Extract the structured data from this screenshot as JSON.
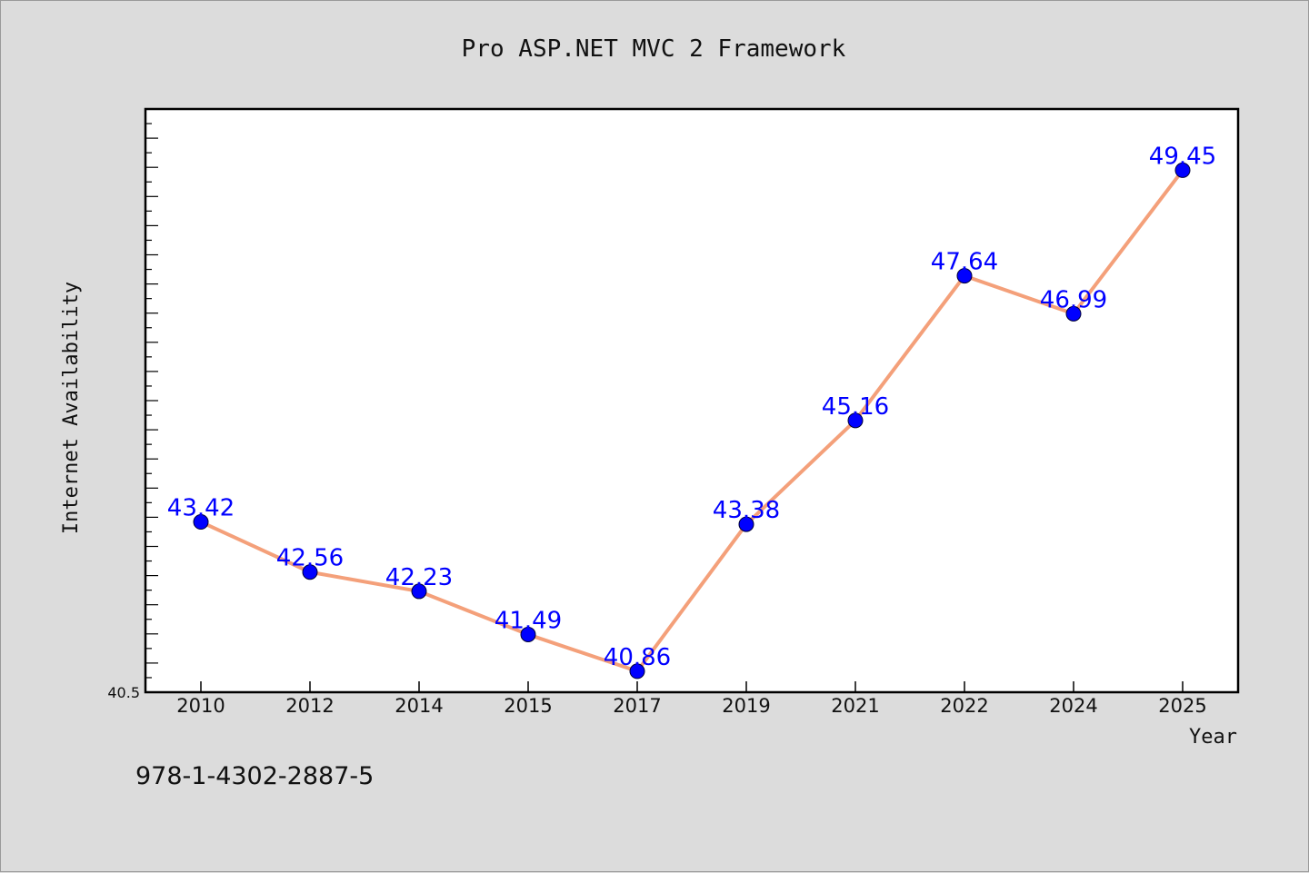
{
  "chart_data": {
    "type": "line",
    "title": "Pro ASP.NET MVC 2 Framework",
    "xlabel": "Year",
    "ylabel": "Internet Availability",
    "categories": [
      "2010",
      "2012",
      "2014",
      "2015",
      "2017",
      "2019",
      "2021",
      "2022",
      "2024",
      "2025"
    ],
    "series": [
      {
        "values": [
          43.42,
          42.56,
          42.23,
          41.49,
          40.86,
          43.38,
          45.16,
          47.64,
          46.99,
          49.45
        ],
        "data_labels": [
          "43.42",
          "42.56",
          "42.23",
          "41.49",
          "40.86",
          "43.38",
          "45.16",
          "47.64",
          "46.99",
          "49.45"
        ]
      }
    ],
    "yticks": [
      40.5
    ],
    "ytick_labels": [
      "40.5"
    ],
    "ylim": [
      40.5,
      50.5
    ],
    "grid": false,
    "legend": "none",
    "colors": {
      "line": "#f4a07a",
      "marker": "#0000ff",
      "data_label": "#0000ff",
      "plot_background": "#ffffff",
      "page_background": "#dcdcdc"
    },
    "annotations": [
      "978-1-4302-2887-5"
    ]
  }
}
